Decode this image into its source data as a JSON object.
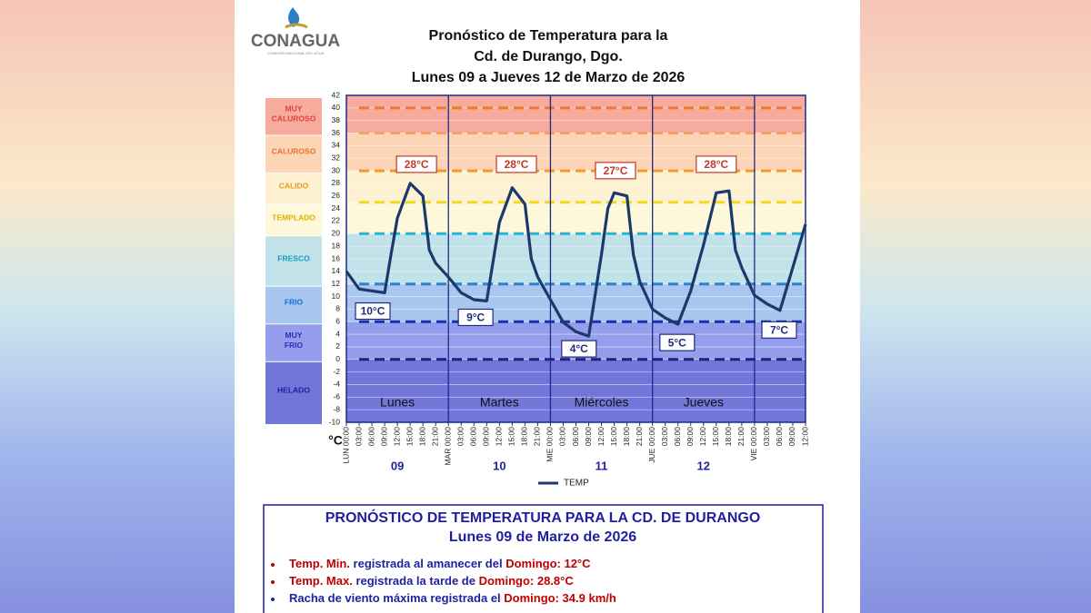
{
  "header": {
    "logo": "CONAGUA",
    "logo_sub": "COMISIÓN NACIONAL DEL AGUA"
  },
  "chart_data": {
    "type": "line",
    "title": [
      "Pronóstico  de Temperatura para la",
      "Cd. de Durango, Dgo.",
      "Lunes 09 a Jueves 12 de Marzo de 2026"
    ],
    "y_label": "°C",
    "xlim": [
      0,
      108
    ],
    "ylim": [
      -10,
      42
    ],
    "yticks": [
      -10,
      -8,
      -6,
      -4,
      -2,
      0,
      2,
      4,
      6,
      8,
      10,
      12,
      14,
      16,
      18,
      20,
      22,
      24,
      26,
      28,
      30,
      32,
      34,
      36,
      38,
      40,
      42
    ],
    "xticks": [
      {
        "value": 0,
        "label": "LUN 00:00"
      },
      {
        "value": 3,
        "label": "03:00"
      },
      {
        "value": 6,
        "label": "06:00"
      },
      {
        "value": 9,
        "label": "09:00"
      },
      {
        "value": 12,
        "label": "12:00"
      },
      {
        "value": 15,
        "label": "15:00"
      },
      {
        "value": 18,
        "label": "18:00"
      },
      {
        "value": 21,
        "label": "21:00"
      },
      {
        "value": 24,
        "label": "MAR 00:00"
      },
      {
        "value": 27,
        "label": "03:00"
      },
      {
        "value": 30,
        "label": "06:00"
      },
      {
        "value": 33,
        "label": "09:00"
      },
      {
        "value": 36,
        "label": "12:00"
      },
      {
        "value": 39,
        "label": "15:00"
      },
      {
        "value": 42,
        "label": "18:00"
      },
      {
        "value": 45,
        "label": "21:00"
      },
      {
        "value": 48,
        "label": "MIE 00:00"
      },
      {
        "value": 51,
        "label": "03:00"
      },
      {
        "value": 54,
        "label": "06:00"
      },
      {
        "value": 57,
        "label": "09:00"
      },
      {
        "value": 60,
        "label": "12:00"
      },
      {
        "value": 63,
        "label": "15:00"
      },
      {
        "value": 66,
        "label": "18:00"
      },
      {
        "value": 69,
        "label": "21:00"
      },
      {
        "value": 72,
        "label": "JUE 00:00"
      },
      {
        "value": 75,
        "label": "03:00"
      },
      {
        "value": 78,
        "label": "06:00"
      },
      {
        "value": 81,
        "label": "09:00"
      },
      {
        "value": 84,
        "label": "12:00"
      },
      {
        "value": 87,
        "label": "15:00"
      },
      {
        "value": 90,
        "label": "18:00"
      },
      {
        "value": 93,
        "label": "21:00"
      },
      {
        "value": 96,
        "label": "VIE 00:00"
      },
      {
        "value": 99,
        "label": "03:00"
      },
      {
        "value": 102,
        "label": "06:00"
      },
      {
        "value": 105,
        "label": "09:00"
      },
      {
        "value": 108,
        "label": "12:00"
      }
    ],
    "day_separators": [
      24,
      48,
      72,
      96
    ],
    "days": [
      {
        "name": "Lunes",
        "date": "09"
      },
      {
        "name": "Martes",
        "date": "10"
      },
      {
        "name": "Miércoles",
        "date": "11"
      },
      {
        "name": "Jueves",
        "date": "12"
      }
    ],
    "zones": [
      {
        "label_lines": [
          "MUY",
          "CALUROSO"
        ],
        "from": 36,
        "to": 42,
        "color": "#f6ab9c",
        "text_color": "#e0413a"
      },
      {
        "label_lines": [
          "CALUROSO"
        ],
        "from": 30,
        "to": 36,
        "color": "#fbd5b5",
        "text_color": "#e8742c"
      },
      {
        "label_lines": [
          "CALIDO"
        ],
        "from": 25,
        "to": 30,
        "color": "#fdf1d2",
        "text_color": "#e89a20"
      },
      {
        "label_lines": [
          "TEMPLADO"
        ],
        "from": 20,
        "to": 25,
        "color": "#fef8da",
        "text_color": "#e0b000"
      },
      {
        "label_lines": [
          "FRESCO"
        ],
        "from": 12,
        "to": 20,
        "color": "#c2e2ea",
        "text_color": "#1a9cc0"
      },
      {
        "label_lines": [
          "FRIO"
        ],
        "from": 6,
        "to": 12,
        "color": "#a9c6ef",
        "text_color": "#1870d0"
      },
      {
        "label_lines": [
          "MUY",
          "FRIO"
        ],
        "from": 0,
        "to": 6,
        "color": "#949eec",
        "text_color": "#2c2cc0"
      },
      {
        "label_lines": [
          "HELADO"
        ],
        "from": -10,
        "to": 0,
        "color": "#7276d9",
        "text_color": "#2020a0"
      }
    ],
    "thresholds": [
      {
        "value": 40,
        "color": "#ee7b2a"
      },
      {
        "value": 36,
        "color": "#f2a06e"
      },
      {
        "value": 30,
        "color": "#f39a2a"
      },
      {
        "value": 25,
        "color": "#f2da1e"
      },
      {
        "value": 20,
        "color": "#27b5d6"
      },
      {
        "value": 12,
        "color": "#2e7fd6"
      },
      {
        "value": 6,
        "color": "#1c2fb0"
      },
      {
        "value": 0,
        "color": "#1a237e"
      }
    ],
    "x": [
      0,
      3,
      6,
      9,
      10.5,
      12,
      15,
      18,
      19.5,
      21,
      24,
      27,
      30,
      33,
      36,
      39,
      42,
      43.5,
      45,
      48,
      51,
      54,
      57,
      60,
      61.5,
      63,
      66,
      67.5,
      69,
      72,
      75,
      78,
      81,
      84,
      87,
      90,
      91.5,
      93,
      96,
      99,
      102,
      105,
      108
    ],
    "series": [
      {
        "name": "TEMP",
        "color": "#1b3a6b",
        "values": [
          14,
          11.2,
          10.9,
          10.6,
          16.7,
          22.5,
          28,
          26,
          17.4,
          15.3,
          13.1,
          10.6,
          9.5,
          9.3,
          21.8,
          27.3,
          24.7,
          16,
          13.1,
          9.5,
          5.9,
          4.4,
          3.7,
          16.7,
          24,
          26.5,
          26,
          16.7,
          12.4,
          8,
          6.6,
          5.6,
          10.9,
          18.2,
          26.5,
          26.8,
          17.4,
          14.6,
          10.2,
          8.8,
          7.8,
          14.6,
          21.5
        ]
      }
    ],
    "extremes": [
      {
        "x": 16.5,
        "value": 28,
        "label": "28°C",
        "kind": "max"
      },
      {
        "x": 6.2,
        "value": 10,
        "label": "10°C",
        "kind": "min"
      },
      {
        "x": 40,
        "value": 28,
        "label": "28°C",
        "kind": "max"
      },
      {
        "x": 30.4,
        "value": 9,
        "label": "9°C",
        "kind": "min"
      },
      {
        "x": 63.3,
        "value": 27,
        "label": "27°C",
        "kind": "max"
      },
      {
        "x": 54.7,
        "value": 4,
        "label": "4°C",
        "kind": "min"
      },
      {
        "x": 87,
        "value": 28,
        "label": "28°C",
        "kind": "max"
      },
      {
        "x": 77.8,
        "value": 5,
        "label": "5°C",
        "kind": "min"
      },
      {
        "x": 101.8,
        "value": 7,
        "label": "7°C",
        "kind": "min"
      }
    ],
    "legend": "bottom"
  },
  "summary": {
    "title": [
      "PRONÓSTICO DE TEMPERATURA PARA LA CD. DE DURANGO",
      "Lunes 09 de Marzo de 2026"
    ],
    "items": [
      [
        {
          "text": "Temp. Min.",
          "color": "#c00000"
        },
        {
          "text": " registrada al amanecer del ",
          "color": "#1f1f9f"
        },
        {
          "text": "Domingo",
          "color": "#c00000"
        },
        {
          "text": ": 12°C",
          "color": "#c00000"
        }
      ],
      [
        {
          "text": "Temp. Max.",
          "color": "#c00000"
        },
        {
          "text": " registrada la tarde de ",
          "color": "#1f1f9f"
        },
        {
          "text": "Domingo",
          "color": "#c00000"
        },
        {
          "text": ":  28.8°C",
          "color": "#c00000"
        }
      ],
      [
        {
          "text": "Racha de viento máxima registrada el ",
          "color": "#1f1f9f"
        },
        {
          "text": "Domingo",
          "color": "#c00000"
        },
        {
          "text": ":  34.9 km/h",
          "color": "#c00000"
        }
      ]
    ]
  }
}
